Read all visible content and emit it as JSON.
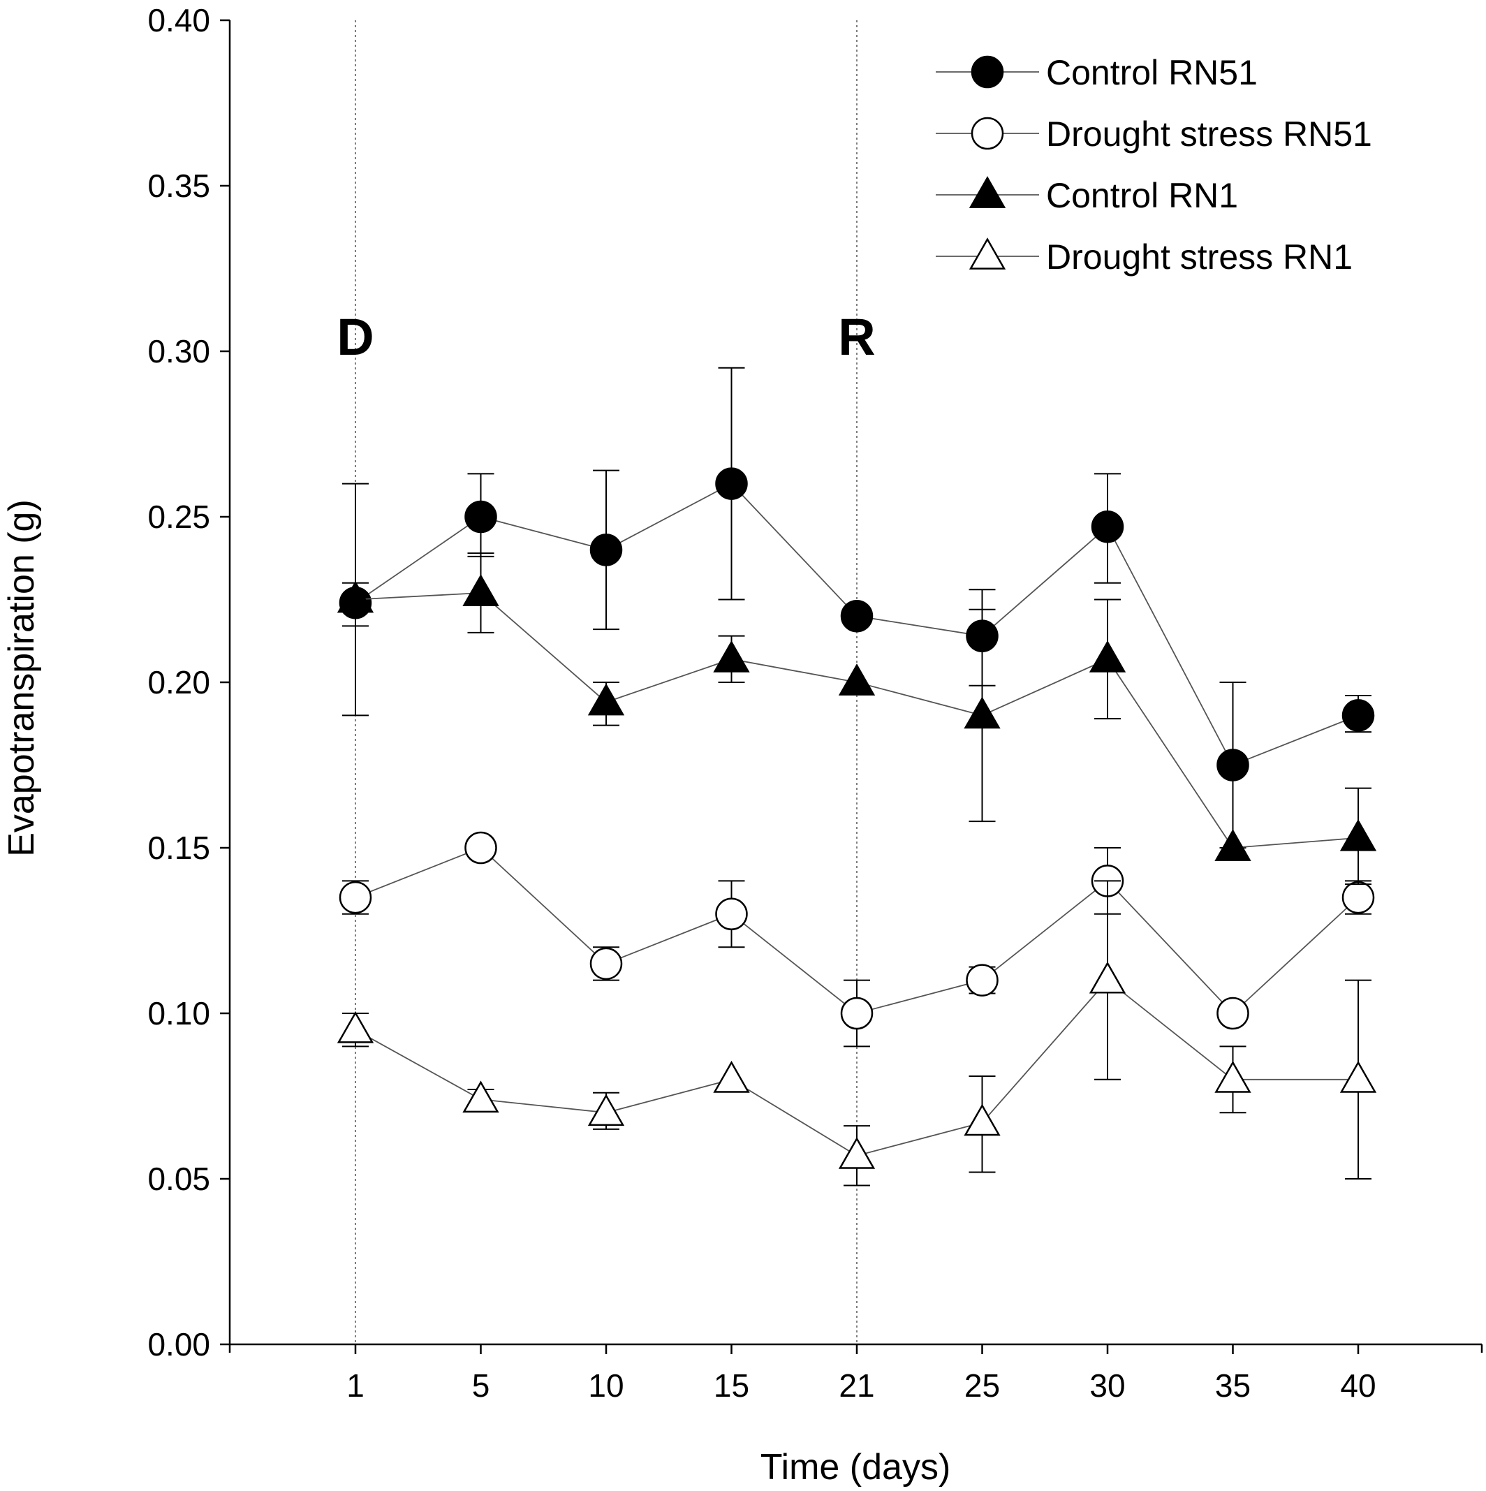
{
  "chart_data": {
    "type": "line",
    "title": "",
    "xlabel": "Time (days)",
    "ylabel": "Evapotranspiration (g)",
    "x": [
      1,
      5,
      10,
      15,
      21,
      25,
      30,
      35,
      40
    ],
    "x_tick_labels": [
      "1",
      "5",
      "10",
      "15",
      "21",
      "25",
      "30",
      "35",
      "40"
    ],
    "y_tick_labels": [
      "0.00",
      "0.05",
      "0.10",
      "0.15",
      "0.20",
      "0.25",
      "0.30",
      "0.35",
      "0.40"
    ],
    "ylim": [
      0,
      0.4
    ],
    "grid": false,
    "legend_position": "top-right",
    "series": [
      {
        "name": "Control RN51",
        "marker": "circle",
        "filled": true,
        "values": [
          0.224,
          0.25,
          0.24,
          0.26,
          0.22,
          0.214,
          0.247,
          0.175,
          0.19
        ],
        "err_low": [
          0.19,
          0.238,
          0.216,
          0.225,
          0.22,
          0.199,
          0.23,
          0.15,
          0.185
        ],
        "err_high": [
          0.26,
          0.263,
          0.264,
          0.295,
          0.22,
          0.228,
          0.263,
          0.2,
          0.196
        ]
      },
      {
        "name": "Drought stress RN51",
        "marker": "circle",
        "filled": false,
        "values": [
          0.135,
          0.15,
          0.115,
          0.13,
          0.1,
          0.11,
          0.14,
          0.1,
          0.135
        ],
        "err_low": [
          0.13,
          0.15,
          0.11,
          0.12,
          0.09,
          0.106,
          0.13,
          0.1,
          0.13
        ],
        "err_high": [
          0.14,
          0.15,
          0.12,
          0.14,
          0.11,
          0.114,
          0.15,
          0.1,
          0.14
        ]
      },
      {
        "name": "Control RN1",
        "marker": "triangle",
        "filled": true,
        "values": [
          0.225,
          0.227,
          0.194,
          0.207,
          0.2,
          0.19,
          0.207,
          0.15,
          0.153
        ],
        "err_low": [
          0.217,
          0.215,
          0.187,
          0.2,
          0.2,
          0.158,
          0.189,
          0.15,
          0.139
        ],
        "err_high": [
          0.23,
          0.239,
          0.2,
          0.214,
          0.2,
          0.222,
          0.225,
          0.15,
          0.168
        ]
      },
      {
        "name": "Drought stress RN1",
        "marker": "triangle",
        "filled": false,
        "values": [
          0.095,
          0.074,
          0.07,
          0.08,
          0.057,
          0.067,
          0.11,
          0.08,
          0.08
        ],
        "err_low": [
          0.09,
          0.072,
          0.065,
          0.08,
          0.048,
          0.052,
          0.08,
          0.07,
          0.05
        ],
        "err_high": [
          0.1,
          0.077,
          0.076,
          0.08,
          0.066,
          0.081,
          0.14,
          0.09,
          0.11
        ]
      }
    ],
    "annotations": [
      {
        "text": "D",
        "x": 1
      },
      {
        "text": "R",
        "x": 21
      }
    ]
  }
}
